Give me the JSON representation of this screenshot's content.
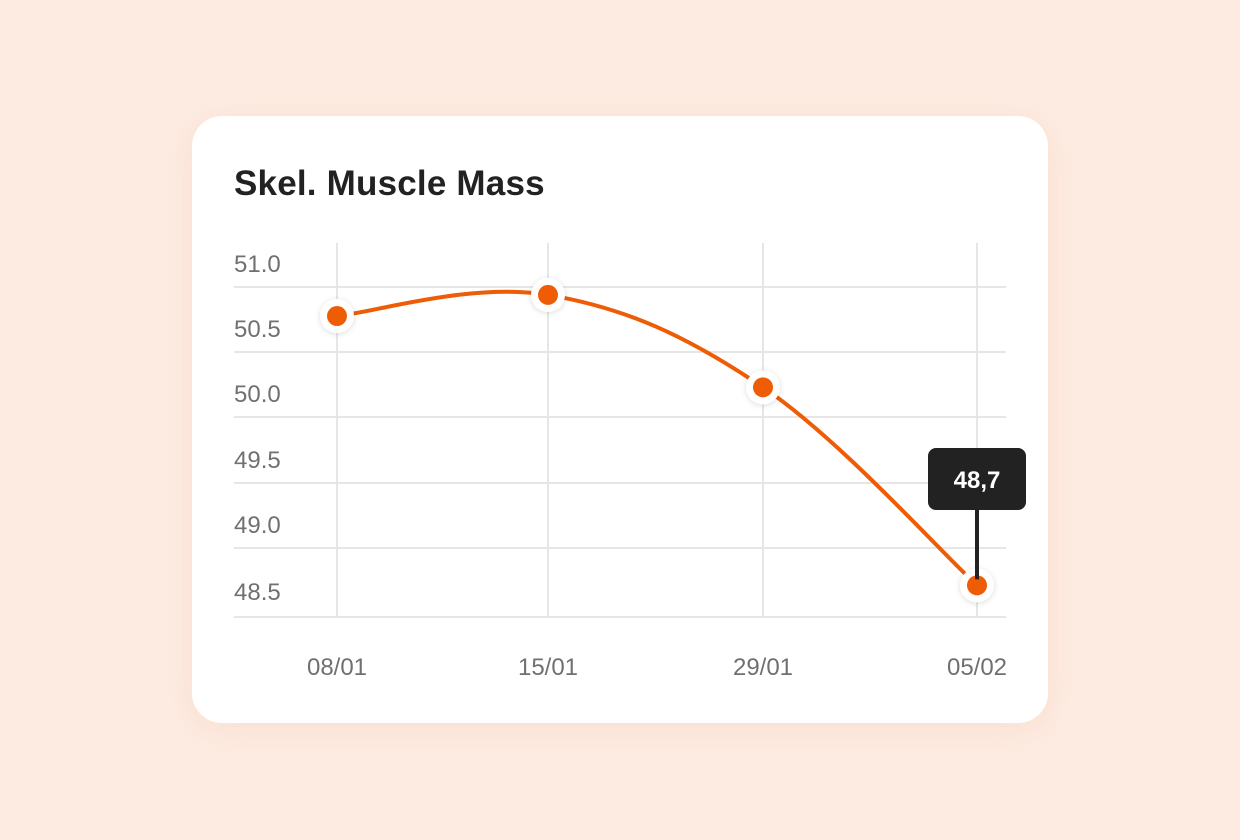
{
  "card": {
    "title": "Skel. Muscle Mass"
  },
  "chart_data": {
    "type": "line",
    "title": "Skel. Muscle Mass",
    "categories": [
      "08/01",
      "15/01",
      "29/01",
      "05/02"
    ],
    "y_ticks": [
      "51.0",
      "50.5",
      "50.0",
      "49.5",
      "49.0",
      "48.5"
    ],
    "series": [
      {
        "values": [
          50.78,
          50.94,
          50.24,
          48.74
        ]
      }
    ],
    "ylim": [
      48.5,
      51.0
    ],
    "grid": true,
    "smooth": true,
    "highlight": {
      "index": 3,
      "label": "48,7"
    },
    "colors": {
      "line": "#EE5C06",
      "grid": "#E6E6E6",
      "tooltip_bg": "#222222",
      "tooltip_text": "#FFFFFF",
      "tick_text": "#707070"
    }
  }
}
